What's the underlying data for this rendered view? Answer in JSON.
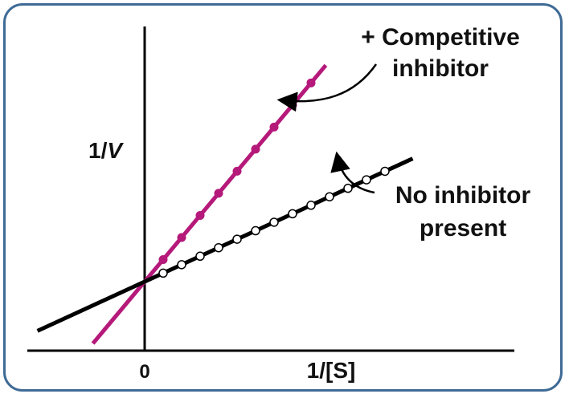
{
  "chart_data": {
    "type": "line",
    "title": "",
    "xlabel": "1/[S]",
    "ylabel_prefix": "1/",
    "ylabel_var": "V",
    "xlim": [
      -0.5,
      2.0
    ],
    "ylim": [
      0,
      4.0
    ],
    "x_ticks": [
      {
        "value": 0,
        "label": "0"
      }
    ],
    "series": [
      {
        "name": "+ Competitive inhibitor",
        "color": "#b5197a",
        "marker": "filled-circle",
        "line": {
          "slope": 3.2,
          "intercept": 1.0,
          "x_start": -0.28,
          "x_end": 0.98
        },
        "points_x": [
          0.1,
          0.2,
          0.3,
          0.4,
          0.5,
          0.6,
          0.7,
          0.8,
          0.9
        ]
      },
      {
        "name": "No inhibitor present",
        "color": "#000000",
        "marker": "open-circle",
        "line": {
          "slope": 1.23,
          "intercept": 1.0,
          "x_start": -0.58,
          "x_end": 1.45
        },
        "points_x": [
          0.1,
          0.2,
          0.3,
          0.4,
          0.5,
          0.6,
          0.7,
          0.8,
          0.9,
          1.0,
          1.1,
          1.2,
          1.3
        ]
      }
    ],
    "annotations": [
      {
        "id": "inhibitor",
        "lines": [
          "+ Competitive",
          "inhibitor"
        ]
      },
      {
        "id": "no-inhibitor",
        "lines": [
          "No inhibitor",
          "present"
        ]
      }
    ]
  },
  "colors": {
    "frame": "#3f6b96",
    "axis": "#000000"
  }
}
